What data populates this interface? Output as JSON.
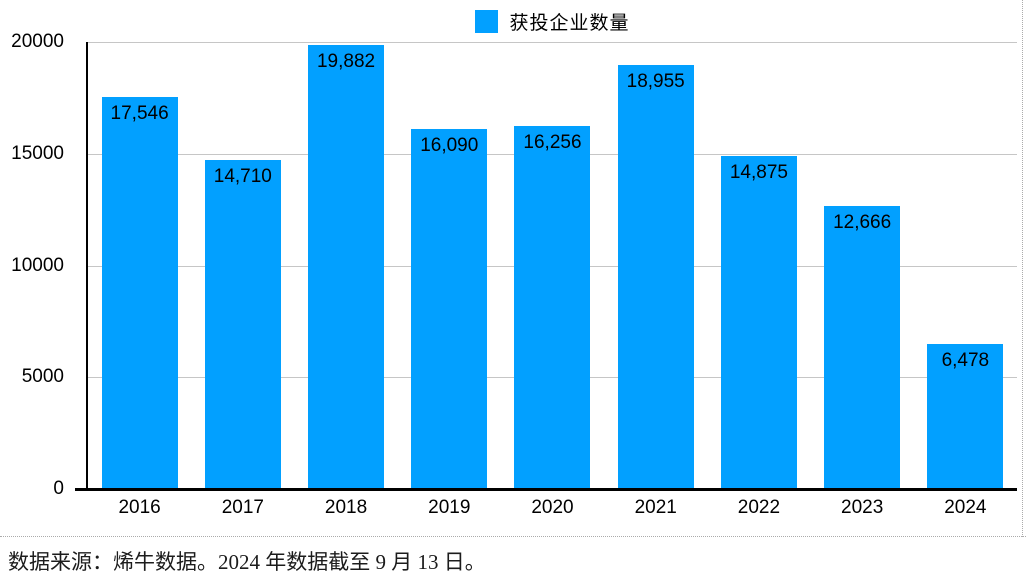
{
  "chart_data": {
    "type": "bar",
    "title": "",
    "legend": [
      {
        "label": "获投企业数量",
        "color": "#02A0FF"
      }
    ],
    "legend_position": "top-center",
    "categories": [
      "2016",
      "2017",
      "2018",
      "2019",
      "2020",
      "2021",
      "2022",
      "2023",
      "2024"
    ],
    "values": [
      17546,
      14710,
      19882,
      16090,
      16256,
      18955,
      14875,
      12666,
      6478
    ],
    "value_labels": [
      "17,546",
      "14,710",
      "19,882",
      "16,090",
      "16,256",
      "18,955",
      "14,875",
      "12,666",
      "6,478"
    ],
    "xlabel": "",
    "ylabel": "",
    "ylim": [
      0,
      20000
    ],
    "yticks": [
      0,
      5000,
      10000,
      15000,
      20000
    ],
    "ytick_labels": [
      "0",
      "5000",
      "10000",
      "15000",
      "20000"
    ],
    "grid": true,
    "bar_color": "#02A0FF"
  },
  "legend": {
    "label": "获投企业数量"
  },
  "footer": {
    "source_note": "数据来源：烯牛数据。2024 年数据截至 9 月 13 日。"
  },
  "colors": {
    "bar": "#02A0FF",
    "gridline": "#c6c6c6",
    "axis": "#000000",
    "frame_border": "#ababab",
    "label_text": "#000000"
  }
}
